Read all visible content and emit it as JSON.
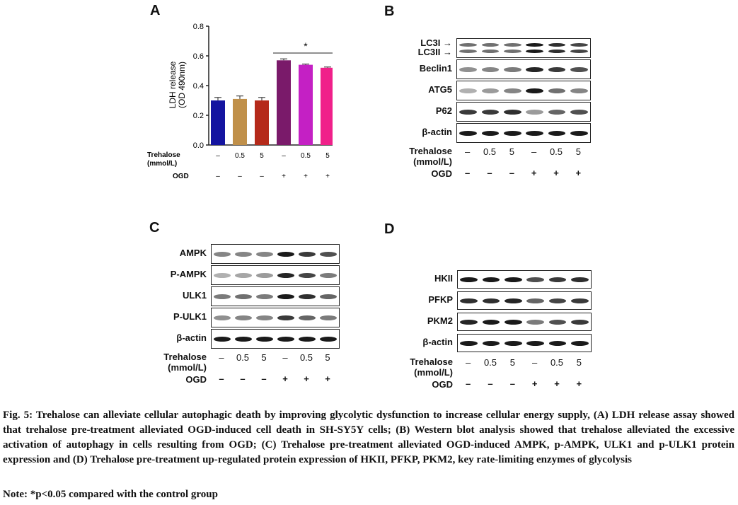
{
  "panels": {
    "A": {
      "letter": "A",
      "chart_data": {
        "type": "bar",
        "ylabel": "LDH release\n(OD 490nm)",
        "ylim": [
          0.0,
          0.8
        ],
        "yticks": [
          "0.0",
          "0.2",
          "0.4",
          "0.6",
          "0.8"
        ],
        "values": [
          0.3,
          0.31,
          0.3,
          0.57,
          0.54,
          0.52
        ],
        "errors": [
          0.02,
          0.02,
          0.02,
          0.01,
          0.005,
          0.005
        ],
        "colors": [
          "#1414a0",
          "#c0904a",
          "#b52a1a",
          "#7a1a6a",
          "#c420c4",
          "#f0208a"
        ],
        "annotation": "*",
        "trehalose": [
          "–",
          "0.5",
          "5",
          "–",
          "0.5",
          "5"
        ],
        "ogd": [
          "–",
          "–",
          "–",
          "+",
          "+",
          "+"
        ]
      }
    },
    "B": {
      "letter": "B",
      "rows": [
        {
          "label": "LC3I →\nLC3II →",
          "intensity": [
            0.55,
            0.55,
            0.55,
            0.95,
            0.85,
            0.75
          ]
        },
        {
          "label": "Beclin1",
          "intensity": [
            0.4,
            0.45,
            0.5,
            0.9,
            0.8,
            0.7
          ]
        },
        {
          "label": "ATG5",
          "intensity": [
            0.25,
            0.35,
            0.45,
            0.95,
            0.55,
            0.45
          ]
        },
        {
          "label": "P62",
          "intensity": [
            0.8,
            0.8,
            0.85,
            0.35,
            0.6,
            0.7
          ]
        },
        {
          "label": "β-actin",
          "intensity": [
            0.95,
            0.95,
            0.95,
            0.95,
            0.95,
            0.95
          ]
        }
      ],
      "trehalose_label": "Trehalose\n(mmol/L)",
      "ogd_label": "OGD",
      "trehalose": [
        "–",
        "0.5",
        "5",
        "–",
        "0.5",
        "5"
      ],
      "ogd": [
        "–",
        "–",
        "–",
        "+",
        "+",
        "+"
      ]
    },
    "C": {
      "letter": "C",
      "rows": [
        {
          "label": "AMPK",
          "intensity": [
            0.45,
            0.45,
            0.45,
            0.95,
            0.8,
            0.7
          ]
        },
        {
          "label": "P-AMPK",
          "intensity": [
            0.25,
            0.3,
            0.35,
            0.9,
            0.75,
            0.5
          ]
        },
        {
          "label": "ULK1",
          "intensity": [
            0.5,
            0.55,
            0.5,
            0.95,
            0.85,
            0.6
          ]
        },
        {
          "label": "P-ULK1",
          "intensity": [
            0.4,
            0.45,
            0.45,
            0.8,
            0.6,
            0.5
          ]
        },
        {
          "label": "β-actin",
          "intensity": [
            0.95,
            0.95,
            0.95,
            0.95,
            0.95,
            0.95
          ]
        }
      ],
      "trehalose_label": "Trehalose\n(mmol/L)",
      "ogd_label": "OGD",
      "trehalose": [
        "–",
        "0.5",
        "5",
        "–",
        "0.5",
        "5"
      ],
      "ogd": [
        "–",
        "–",
        "–",
        "+",
        "+",
        "+"
      ]
    },
    "D": {
      "letter": "D",
      "rows": [
        {
          "label": "HKII",
          "intensity": [
            0.95,
            0.95,
            0.95,
            0.7,
            0.8,
            0.85
          ]
        },
        {
          "label": "PFKP",
          "intensity": [
            0.85,
            0.85,
            0.9,
            0.6,
            0.75,
            0.8
          ]
        },
        {
          "label": "PKM2",
          "intensity": [
            0.9,
            0.95,
            0.95,
            0.5,
            0.7,
            0.8
          ]
        },
        {
          "label": "β-actin",
          "intensity": [
            0.95,
            0.95,
            0.95,
            0.95,
            0.95,
            0.95
          ]
        }
      ],
      "trehalose_label": "Trehalose\n(mmol/L)",
      "ogd_label": "OGD",
      "trehalose": [
        "–",
        "0.5",
        "5",
        "–",
        "0.5",
        "5"
      ],
      "ogd": [
        "–",
        "–",
        "–",
        "+",
        "+",
        "+"
      ]
    }
  },
  "caption": "Fig. 5: Trehalose can alleviate cellular autophagic death by improving glycolytic dysfunction to increase cellular energy supply, (A) LDH release assay showed that trehalose pre-treatment alleviated OGD-induced cell death in SH-SY5Y cells; (B) Western blot analysis showed that trehalose alleviated the excessive activation of autophagy in cells resulting from OGD; (C) Trehalose pre-treatment alleviated OGD-induced AMPK, p-AMPK, ULK1 and p-ULK1 protein expression and (D) Trehalose pre-treatment up-regulated protein expression of HKII, PFKP, PKM2, key rate-limiting enzymes of glycolysis",
  "note": "Note: *p<0.05 compared with the control group"
}
